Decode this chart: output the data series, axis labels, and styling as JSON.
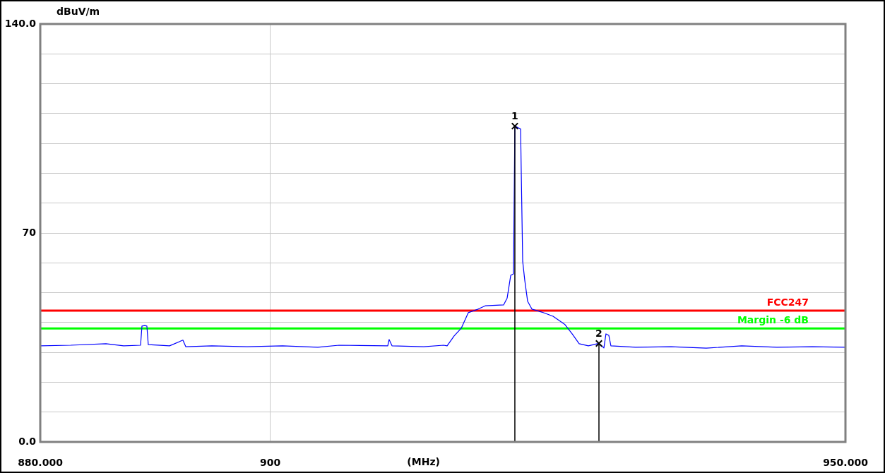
{
  "chart_data": {
    "type": "line",
    "ylabel": "dBuV/m",
    "xlabel": "(MHz)",
    "xlim": [
      880,
      950
    ],
    "xticks": [
      {
        "value": 880,
        "label": "880.000"
      },
      900,
      {
        "value": 950,
        "label": "950.000"
      }
    ],
    "ylim": [
      0,
      140
    ],
    "yticks": [
      {
        "value": 0,
        "label": "0.0"
      },
      {
        "value": 10,
        "label": null
      },
      {
        "value": 20,
        "label": null
      },
      {
        "value": 30,
        "label": null
      },
      {
        "value": 40,
        "label": null
      },
      {
        "value": 50,
        "label": null
      },
      {
        "value": 60,
        "label": null
      },
      70,
      {
        "value": 80,
        "label": null
      },
      {
        "value": 90,
        "label": null
      },
      {
        "value": 100,
        "label": null
      },
      {
        "value": 110,
        "label": null
      },
      {
        "value": 120,
        "label": null
      },
      {
        "value": 130,
        "label": null
      },
      {
        "value": 140,
        "label": "140.0"
      }
    ],
    "grid": true,
    "legend": false,
    "line_style": "solid",
    "series": [
      {
        "color": "#0000ff",
        "marker": "none",
        "x": [
          880,
          882.64,
          885.71,
          887.25,
          888.72,
          888.84,
          889.09,
          889.27,
          889.39,
          891.24,
          892.4,
          892.65,
          894.92,
          897.99,
          901.06,
          904.13,
          905.97,
          910.21,
          910.33,
          910.58,
          913.34,
          915.06,
          915.37,
          915.98,
          916.6,
          917.21,
          918.07,
          918.68,
          920.28,
          920.59,
          920.9,
          921.14,
          921.26,
          921.76,
          921.82,
          921.94,
          922.12,
          922.37,
          922.74,
          923.6,
          924.58,
          925.62,
          926.24,
          926.85,
          927.65,
          928.57,
          929,
          929.18,
          929.43,
          929.61,
          931.76,
          934.83,
          937.9,
          940.98,
          944.04,
          947.12,
          950
        ],
        "values": [
          32.2,
          32.4,
          32.9,
          32.2,
          32.4,
          38.8,
          39.0,
          38.8,
          32.6,
          32.2,
          34.1,
          31.9,
          32.2,
          31.9,
          32.2,
          31.7,
          32.4,
          32.2,
          34.3,
          32.2,
          31.9,
          32.4,
          32.2,
          35.5,
          38.1,
          43.3,
          44.5,
          45.6,
          45.9,
          48.2,
          55.8,
          56.3,
          105.8,
          104.8,
          89.4,
          60.5,
          54.2,
          47.1,
          44.5,
          43.5,
          42.1,
          39.3,
          36.2,
          32.9,
          32.2,
          33.0,
          31.5,
          36.2,
          35.7,
          32.2,
          31.7,
          31.9,
          31.4,
          32.2,
          31.7,
          31.9,
          31.7
        ]
      },
      {
        "type": "lollipop",
        "color": "#000000",
        "marker": "cross",
        "x": [
          921.26,
          928.57
        ],
        "values": [
          105.8,
          33.0
        ]
      }
    ],
    "ref_lines": [
      {
        "axis": "y",
        "value": 44,
        "label": "FCC247",
        "color": "#ff0000",
        "line_style": "solid"
      },
      {
        "axis": "y",
        "value": 38,
        "label": "Margin -6 dB",
        "color": "#00ff00",
        "line_style": "solid"
      }
    ],
    "annotations": [
      {
        "text": "1",
        "x": 921.26,
        "y": 105.8
      },
      {
        "text": "2",
        "x": 928.57,
        "y": 33.0
      }
    ]
  }
}
